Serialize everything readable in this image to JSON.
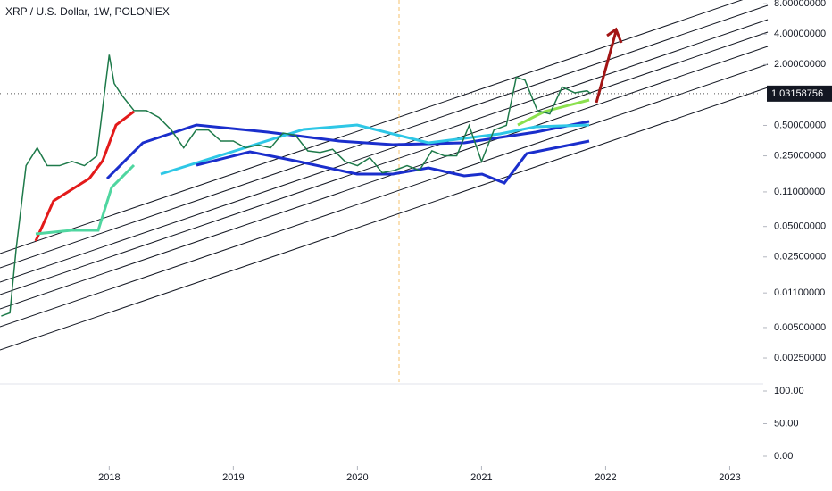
{
  "chart_data": [
    {
      "type": "line",
      "title": "XRP / U.S. Dollar, 1W, POLONIEX",
      "log_scale": true,
      "x": [
        2017.13,
        2017.2,
        2017.25,
        2017.33,
        2017.42,
        2017.5,
        2017.6,
        2017.7,
        2017.8,
        2017.9,
        2017.95,
        2018.0,
        2018.04,
        2018.1,
        2018.2,
        2018.3,
        2018.4,
        2018.5,
        2018.6,
        2018.7,
        2018.8,
        2018.9,
        2019.0,
        2019.1,
        2019.2,
        2019.3,
        2019.4,
        2019.5,
        2019.6,
        2019.7,
        2019.8,
        2019.9,
        2020.0,
        2020.1,
        2020.2,
        2020.3,
        2020.4,
        2020.5,
        2020.6,
        2020.7,
        2020.8,
        2020.9,
        2021.0,
        2021.1,
        2021.2,
        2021.28,
        2021.35,
        2021.45,
        2021.55,
        2021.65,
        2021.75,
        2021.85,
        2021.88
      ],
      "series": [
        {
          "color": "#1e7a4a",
          "values": [
            0.0065,
            0.007,
            0.03,
            0.2,
            0.3,
            0.2,
            0.2,
            0.22,
            0.2,
            0.25,
            0.8,
            2.5,
            1.3,
            1.0,
            0.7,
            0.7,
            0.6,
            0.45,
            0.3,
            0.45,
            0.45,
            0.35,
            0.35,
            0.3,
            0.32,
            0.3,
            0.42,
            0.4,
            0.28,
            0.27,
            0.29,
            0.22,
            0.2,
            0.24,
            0.17,
            0.18,
            0.2,
            0.18,
            0.28,
            0.25,
            0.25,
            0.5,
            0.22,
            0.45,
            0.5,
            1.5,
            1.4,
            0.7,
            0.65,
            1.2,
            1.05,
            1.1,
            1.03158756
          ]
        }
      ],
      "last_value": 1.03158756,
      "xlim": [
        2017.12,
        2023.27
      ],
      "xticks": [
        2018,
        2019,
        2020,
        2021,
        2022,
        2023
      ],
      "ylim": [
        0.0017,
        8.7
      ],
      "yticks": [
        {
          "value": 8,
          "label": "8.00000000"
        },
        {
          "value": 4,
          "label": "4.00000000"
        },
        {
          "value": 2,
          "label": "2.00000000"
        },
        {
          "value": 0.5,
          "label": "0.50000000"
        },
        {
          "value": 0.25,
          "label": "0.25000000"
        },
        {
          "value": 0.11,
          "label": "0.11000000"
        },
        {
          "value": 0.05,
          "label": "0.05000000"
        },
        {
          "value": 0.025,
          "label": "0.02500000"
        },
        {
          "value": 0.011,
          "label": "0.01100000"
        },
        {
          "value": 0.005,
          "label": "0.00500000"
        },
        {
          "value": 0.0025,
          "label": "0.00250000"
        }
      ]
    },
    {
      "type": "line",
      "ylim": [
        0,
        100
      ],
      "yticks": [
        {
          "value": 100,
          "label": "100.00"
        },
        {
          "value": 50,
          "label": "50.00"
        },
        {
          "value": 0,
          "label": "0.00"
        }
      ]
    }
  ]
}
